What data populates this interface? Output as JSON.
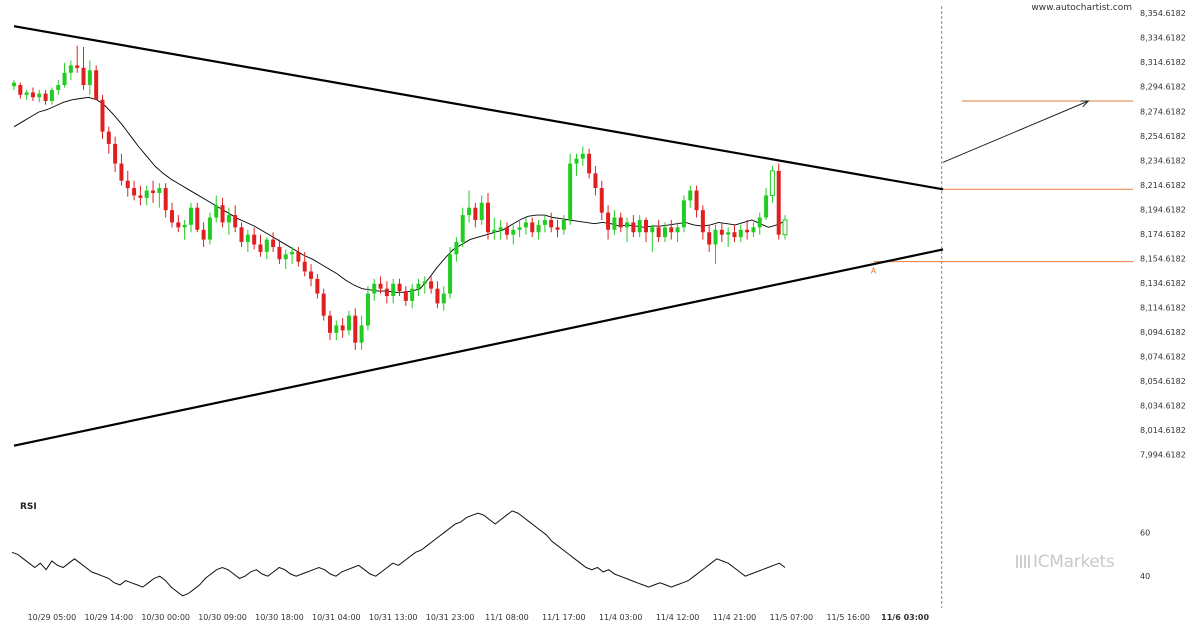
{
  "site_label": "www.autochartist.com",
  "brand": {
    "text": "ICMarkets",
    "icon": "icmarkets-logo-icon"
  },
  "colors": {
    "bull": "#22cc22",
    "bear": "#e02020",
    "trend": "#000000",
    "level": "#e87b3a",
    "ma": "#000000",
    "grid": "#e6e6e6"
  },
  "chart_data": [
    {
      "type": "candlestick",
      "title": "",
      "ylim": [
        7984.6182,
        8359.6182
      ],
      "y_ticks": [
        "8,354.6182",
        "8,334.6182",
        "8,314.6182",
        "8,294.6182",
        "8,274.6182",
        "8,254.6182",
        "8,234.6182",
        "8,214.6182",
        "8,194.6182",
        "8,174.6182",
        "8,154.6182",
        "8,134.6182",
        "8,114.6182",
        "8,094.6182",
        "8,074.6182",
        "8,054.6182",
        "8,034.6182",
        "8,014.6182",
        "7,994.6182"
      ],
      "x_ticks": [
        "10/29 05:00",
        "10/29 14:00",
        "10/30 00:00",
        "10/30 09:00",
        "10/30 18:00",
        "10/31 04:00",
        "10/31 13:00",
        "10/31 23:00",
        "11/1 08:00",
        "11/1 17:00",
        "11/4 03:00",
        "11/4 12:00",
        "11/4 21:00",
        "11/5 07:00",
        "11/5 16:00",
        "11/6 03:00"
      ],
      "x_tick_bars": [
        6,
        15,
        24,
        33,
        42,
        51,
        60,
        69,
        78,
        87,
        96,
        105,
        114,
        123,
        132,
        141
      ],
      "highlight_tick": "11/6 03:00",
      "candles": [
        [
          8295,
          8300,
          8292,
          8298
        ],
        [
          8296,
          8298,
          8285,
          8288
        ],
        [
          8288,
          8292,
          8284,
          8290
        ],
        [
          8290,
          8294,
          8283,
          8286
        ],
        [
          8286,
          8292,
          8282,
          8289
        ],
        [
          8289,
          8292,
          8280,
          8283
        ],
        [
          8283,
          8294,
          8280,
          8292
        ],
        [
          8292,
          8300,
          8288,
          8296
        ],
        [
          8296,
          8314,
          8294,
          8306
        ],
        [
          8306,
          8316,
          8300,
          8312
        ],
        [
          8312,
          8328,
          8306,
          8310
        ],
        [
          8310,
          8327,
          8292,
          8296
        ],
        [
          8296,
          8316,
          8288,
          8308
        ],
        [
          8308,
          8312,
          8286,
          8284
        ],
        [
          8284,
          8288,
          8252,
          8258
        ],
        [
          8258,
          8262,
          8240,
          8248
        ],
        [
          8248,
          8254,
          8225,
          8232
        ],
        [
          8232,
          8240,
          8214,
          8218
        ],
        [
          8218,
          8226,
          8205,
          8212
        ],
        [
          8212,
          8218,
          8202,
          8206
        ],
        [
          8206,
          8214,
          8198,
          8204
        ],
        [
          8204,
          8214,
          8198,
          8210
        ],
        [
          8210,
          8218,
          8200,
          8208
        ],
        [
          8208,
          8216,
          8196,
          8212
        ],
        [
          8212,
          8216,
          8188,
          8194
        ],
        [
          8194,
          8200,
          8180,
          8184
        ],
        [
          8184,
          8190,
          8176,
          8180
        ],
        [
          8180,
          8186,
          8170,
          8182
        ],
        [
          8182,
          8200,
          8176,
          8196
        ],
        [
          8196,
          8200,
          8176,
          8178
        ],
        [
          8178,
          8184,
          8164,
          8170
        ],
        [
          8170,
          8192,
          8166,
          8188
        ],
        [
          8188,
          8206,
          8184,
          8198
        ],
        [
          8198,
          8204,
          8180,
          8184
        ],
        [
          8184,
          8196,
          8174,
          8190
        ],
        [
          8190,
          8198,
          8176,
          8180
        ],
        [
          8180,
          8184,
          8164,
          8168
        ],
        [
          8168,
          8178,
          8160,
          8174
        ],
        [
          8174,
          8180,
          8162,
          8166
        ],
        [
          8166,
          8174,
          8156,
          8160
        ],
        [
          8160,
          8172,
          8154,
          8170
        ],
        [
          8170,
          8176,
          8160,
          8164
        ],
        [
          8164,
          8170,
          8150,
          8154
        ],
        [
          8154,
          8162,
          8146,
          8158
        ],
        [
          8158,
          8164,
          8150,
          8160
        ],
        [
          8160,
          8164,
          8148,
          8152
        ],
        [
          8152,
          8160,
          8140,
          8144
        ],
        [
          8144,
          8150,
          8132,
          8138
        ],
        [
          8138,
          8142,
          8122,
          8126
        ],
        [
          8126,
          8130,
          8104,
          8108
        ],
        [
          8108,
          8112,
          8088,
          8094
        ],
        [
          8094,
          8104,
          8088,
          8100
        ],
        [
          8100,
          8106,
          8090,
          8096
        ],
        [
          8096,
          8112,
          8092,
          8108
        ],
        [
          8108,
          8114,
          8080,
          8086
        ],
        [
          8086,
          8108,
          8080,
          8100
        ],
        [
          8100,
          8132,
          8096,
          8126
        ],
        [
          8126,
          8138,
          8120,
          8134
        ],
        [
          8134,
          8140,
          8126,
          8130
        ],
        [
          8130,
          8136,
          8118,
          8124
        ],
        [
          8124,
          8138,
          8118,
          8134
        ],
        [
          8134,
          8138,
          8124,
          8128
        ],
        [
          8128,
          8132,
          8116,
          8120
        ],
        [
          8120,
          8134,
          8114,
          8130
        ],
        [
          8130,
          8138,
          8124,
          8134
        ],
        [
          8134,
          8140,
          8126,
          8136
        ],
        [
          8136,
          8140,
          8126,
          8130
        ],
        [
          8130,
          8136,
          8114,
          8118
        ],
        [
          8118,
          8132,
          8112,
          8126
        ],
        [
          8126,
          8164,
          8122,
          8158
        ],
        [
          8158,
          8172,
          8152,
          8168
        ],
        [
          8168,
          8196,
          8164,
          8190
        ],
        [
          8190,
          8210,
          8184,
          8196
        ],
        [
          8196,
          8200,
          8180,
          8186
        ],
        [
          8186,
          8206,
          8182,
          8200
        ],
        [
          8200,
          8208,
          8170,
          8176
        ],
        [
          8176,
          8188,
          8170,
          8178
        ],
        [
          8178,
          8186,
          8170,
          8180
        ],
        [
          8180,
          8184,
          8170,
          8174
        ],
        [
          8174,
          8182,
          8166,
          8178
        ],
        [
          8178,
          8186,
          8172,
          8180
        ],
        [
          8180,
          8188,
          8174,
          8184
        ],
        [
          8184,
          8188,
          8172,
          8176
        ],
        [
          8176,
          8186,
          8170,
          8182
        ],
        [
          8182,
          8190,
          8176,
          8186
        ],
        [
          8186,
          8192,
          8176,
          8180
        ],
        [
          8180,
          8186,
          8172,
          8178
        ],
        [
          8178,
          8190,
          8174,
          8186
        ],
        [
          8186,
          8240,
          8182,
          8232
        ],
        [
          8232,
          8240,
          8222,
          8236
        ],
        [
          8236,
          8246,
          8230,
          8240
        ],
        [
          8240,
          8244,
          8220,
          8224
        ],
        [
          8224,
          8230,
          8206,
          8212
        ],
        [
          8212,
          8218,
          8186,
          8192
        ],
        [
          8192,
          8198,
          8170,
          8178
        ],
        [
          8178,
          8194,
          8174,
          8188
        ],
        [
          8188,
          8192,
          8176,
          8180
        ],
        [
          8180,
          8188,
          8168,
          8184
        ],
        [
          8184,
          8190,
          8172,
          8176
        ],
        [
          8176,
          8190,
          8172,
          8186
        ],
        [
          8186,
          8188,
          8168,
          8176
        ],
        [
          8176,
          8182,
          8160,
          8180
        ],
        [
          8180,
          8186,
          8168,
          8172
        ],
        [
          8172,
          8184,
          8168,
          8180
        ],
        [
          8180,
          8186,
          8170,
          8176
        ],
        [
          8176,
          8184,
          8168,
          8180
        ],
        [
          8180,
          8206,
          8176,
          8202
        ],
        [
          8202,
          8214,
          8196,
          8210
        ],
        [
          8210,
          8214,
          8188,
          8194
        ],
        [
          8194,
          8198,
          8170,
          8176
        ],
        [
          8176,
          8182,
          8160,
          8166
        ],
        [
          8166,
          8182,
          8150,
          8178
        ],
        [
          8178,
          8184,
          8168,
          8174
        ],
        [
          8174,
          8180,
          8164,
          8176
        ],
        [
          8176,
          8182,
          8168,
          8172
        ],
        [
          8172,
          8182,
          8168,
          8178
        ],
        [
          8178,
          8186,
          8170,
          8176
        ],
        [
          8176,
          8184,
          8172,
          8180
        ],
        [
          8180,
          8192,
          8174,
          8188
        ],
        [
          8188,
          8212,
          8186,
          8206
        ],
        [
          8206,
          8230,
          8200,
          8226
        ],
        [
          8226,
          8232,
          8170,
          8174
        ],
        [
          8174,
          8190,
          8170,
          8186
        ]
      ],
      "moving_average": [
        8262,
        8266,
        8270,
        8274,
        8276,
        8279,
        8282,
        8284,
        8285,
        8286,
        8284,
        8279,
        8272,
        8264,
        8255,
        8246,
        8238,
        8230,
        8224,
        8219,
        8215,
        8211,
        8207,
        8203,
        8199,
        8195,
        8191,
        8187,
        8184,
        8181,
        8177,
        8173,
        8169,
        8165,
        8161,
        8157,
        8154,
        8150,
        8146,
        8142,
        8137,
        8133,
        8130,
        8129,
        8128,
        8128,
        8127,
        8127,
        8128,
        8130,
        8138,
        8147,
        8155,
        8162,
        8166,
        8170,
        8172,
        8174,
        8176,
        8178,
        8182,
        8186,
        8189,
        8190,
        8190,
        8188,
        8187,
        8186,
        8185,
        8184,
        8183,
        8184,
        8183,
        8181,
        8182,
        8181,
        8180,
        8181,
        8181,
        8182,
        8183,
        8184,
        8182,
        8181,
        8182,
        8184,
        8183,
        8182,
        8184,
        8186,
        8183,
        8180,
        8182,
        8185
      ],
      "ma_start_bar": 2,
      "trendlines": [
        {
          "from": [
            0,
            8344
          ],
          "to": [
            147,
            8211
          ],
          "width": 2.2
        },
        {
          "from": [
            0,
            8002
          ],
          "to": [
            147,
            8162
          ],
          "width": 2.2
        }
      ],
      "projection": {
        "from": [
          147,
          8233
        ],
        "to": [
          170,
          8283
        ]
      },
      "levels": [
        {
          "value": 8283,
          "from_bar": 150
        },
        {
          "value": 8211,
          "from_bar": 147
        },
        {
          "value": 8152,
          "from_bar": 136
        }
      ],
      "pivot_marker": {
        "label": "A",
        "bar": 136
      },
      "current_bar_line": 146.8
    },
    {
      "type": "line",
      "title": "RSI",
      "ylim": [
        30,
        75
      ],
      "y_ticks": [
        "60",
        "40"
      ],
      "values": [
        51,
        50,
        48,
        46,
        44,
        46,
        43,
        47,
        45,
        44,
        46,
        48,
        46,
        44,
        42,
        41,
        40,
        39,
        37,
        36,
        38,
        37,
        36,
        35,
        37,
        39,
        40,
        38,
        35,
        33,
        31,
        32,
        34,
        36,
        39,
        41,
        43,
        44,
        43,
        41,
        39,
        40,
        42,
        43,
        41,
        40,
        42,
        44,
        43,
        41,
        40,
        41,
        42,
        43,
        44,
        43,
        41,
        40,
        42,
        43,
        44,
        45,
        43,
        41,
        40,
        42,
        44,
        46,
        45,
        47,
        49,
        51,
        52,
        54,
        56,
        58,
        60,
        62,
        64,
        65,
        67,
        68,
        69,
        68,
        66,
        64,
        66,
        68,
        70,
        69,
        67,
        65,
        63,
        61,
        59,
        56,
        54,
        52,
        50,
        48,
        46,
        44,
        43,
        44,
        42,
        43,
        41,
        40,
        39,
        38,
        37,
        36,
        35,
        36,
        37,
        36,
        35,
        36,
        37,
        38,
        40,
        42,
        44,
        46,
        48,
        47,
        46,
        44,
        42,
        40,
        41,
        42,
        43,
        44,
        45,
        46,
        44
      ]
    }
  ]
}
